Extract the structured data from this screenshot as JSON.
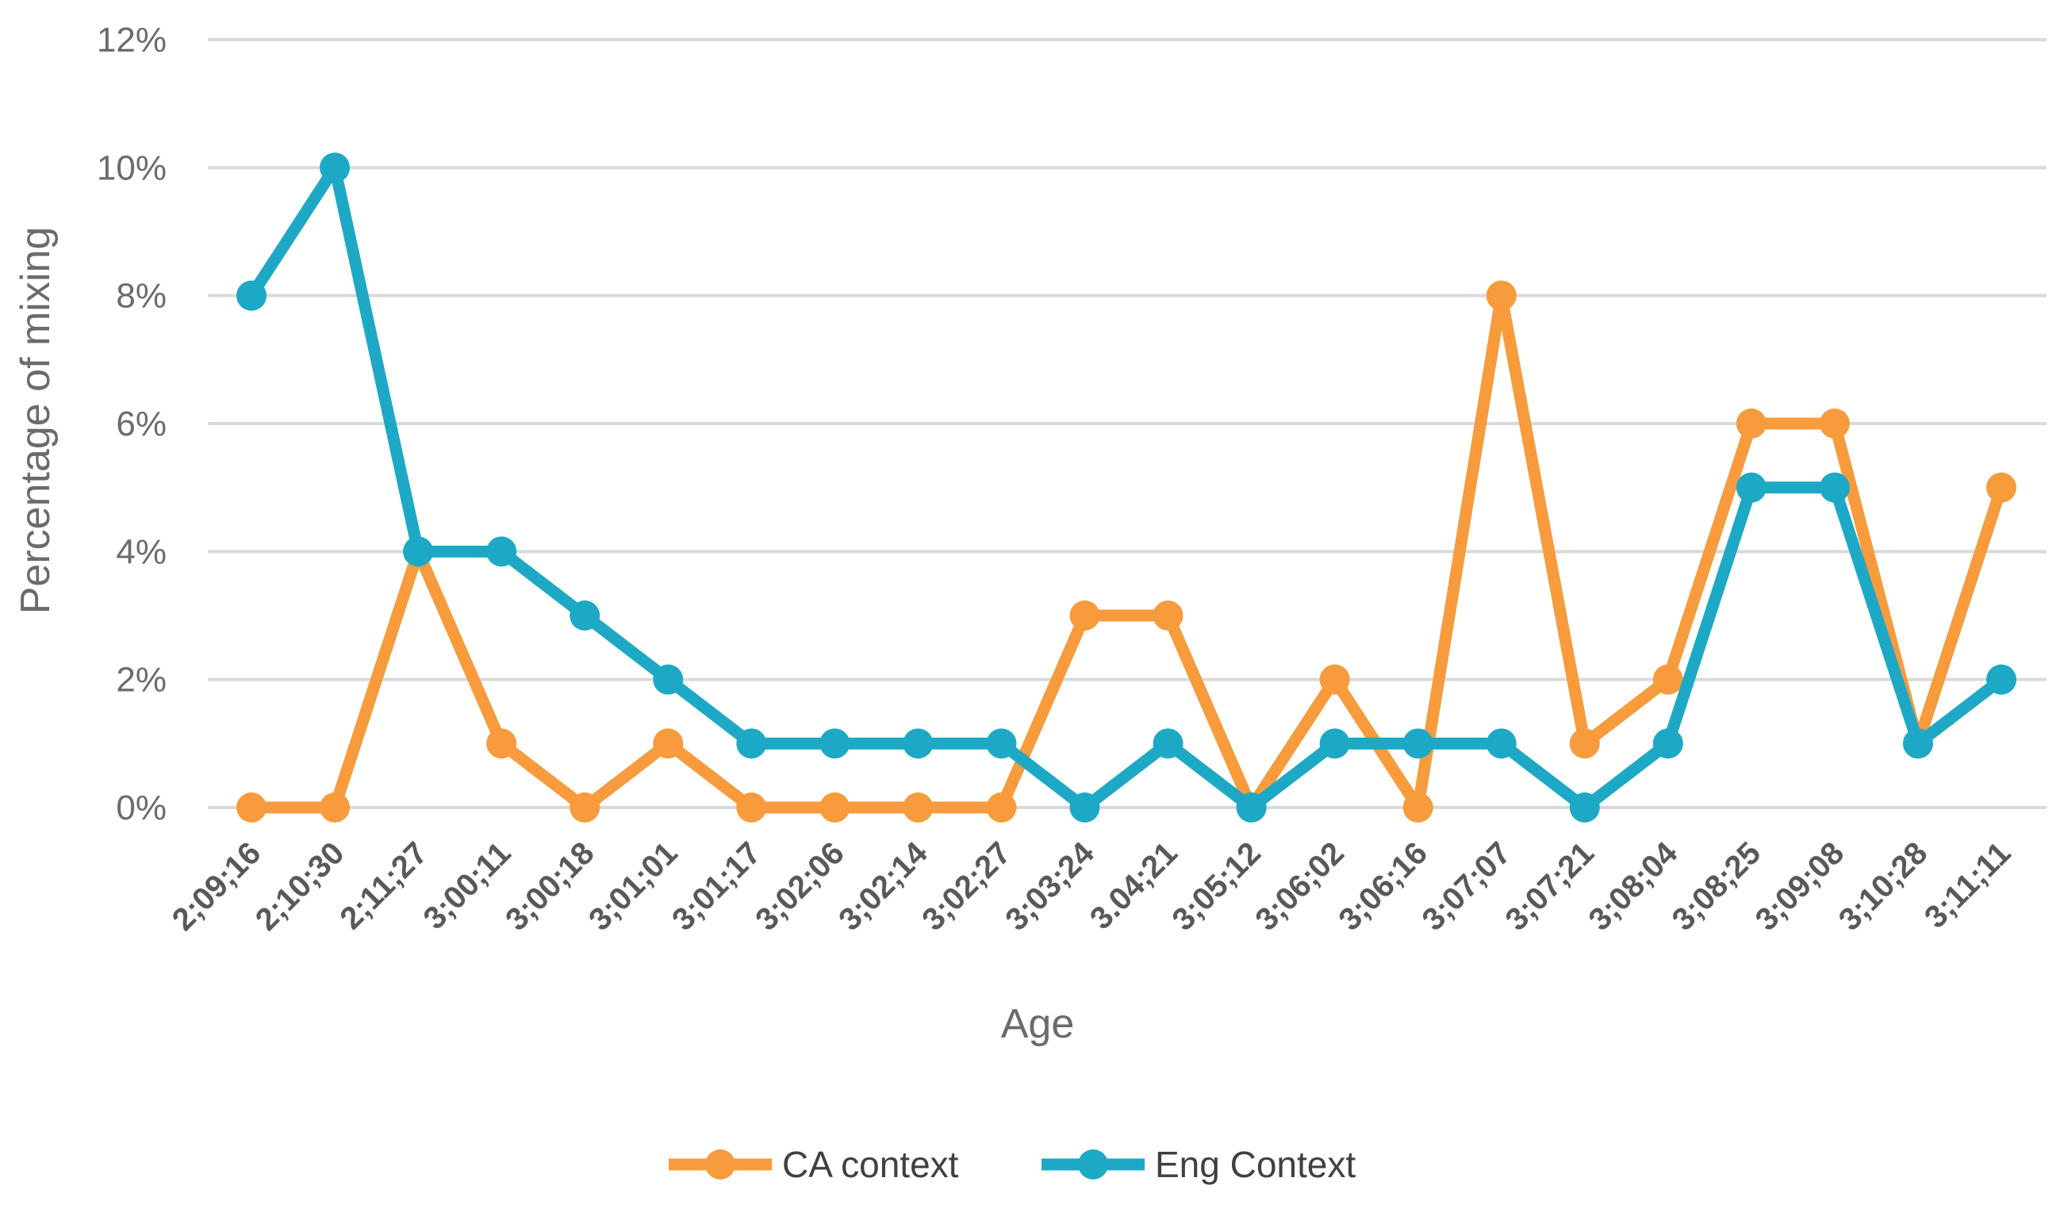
{
  "chart_data": {
    "type": "line",
    "xlabel": "Age",
    "ylabel": "Percentage of mixing",
    "ylim": [
      0,
      12
    ],
    "y_ticks": [
      "0%",
      "2%",
      "4%",
      "6%",
      "8%",
      "10%",
      "12%"
    ],
    "grid": true,
    "legend_position": "bottom",
    "categories": [
      "2;09;16",
      "2;10;30",
      "2;11;27",
      "3;00;11",
      "3;00;18",
      "3;01;01",
      "3;01;17",
      "3;02;06",
      "3;02;14",
      "3;02;27",
      "3;03;24",
      "3.04;21",
      "3;05;12",
      "3;06;02",
      "3;06;16",
      "3;07;07",
      "3;07;21",
      "3;08;04",
      "3;08;25",
      "3;09;08",
      "3;10;28",
      "3;11;11"
    ],
    "series": [
      {
        "name": "CA context",
        "color": "#F79B3C",
        "values": [
          0,
          0,
          4,
          1,
          0,
          1,
          0,
          0,
          0,
          0,
          3,
          3,
          0,
          2,
          0,
          8,
          1,
          2,
          6,
          6,
          1,
          5
        ]
      },
      {
        "name": "Eng Context",
        "color": "#1DA9C6",
        "values": [
          8,
          10,
          4,
          4,
          3,
          2,
          1,
          1,
          1,
          1,
          0,
          1,
          0,
          1,
          1,
          1,
          0,
          1,
          5,
          5,
          1,
          2
        ]
      }
    ]
  }
}
